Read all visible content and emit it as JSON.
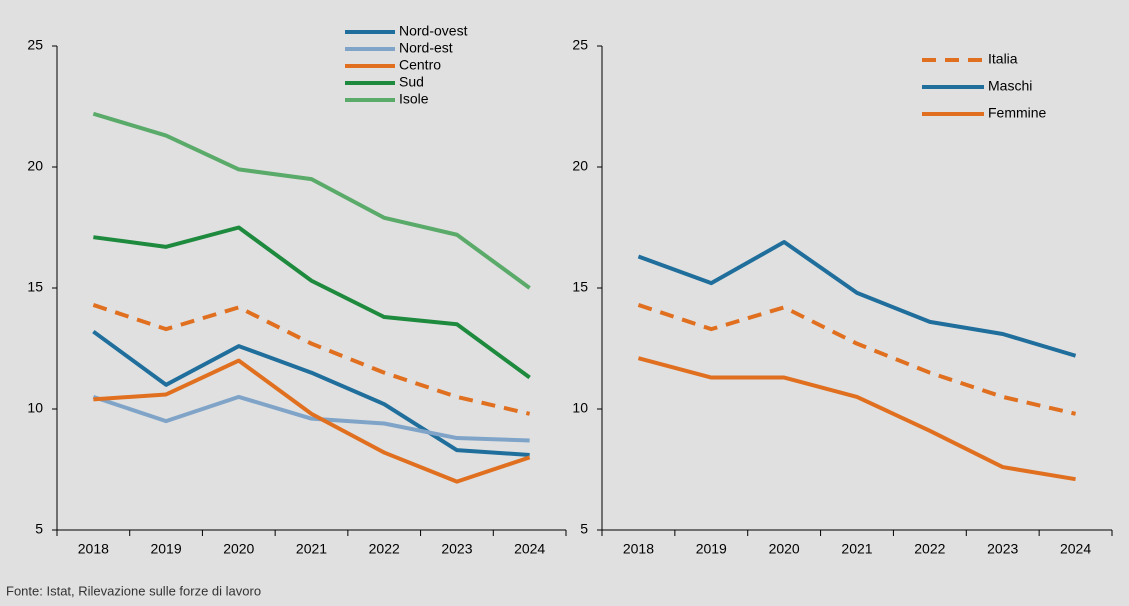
{
  "chart_data": [
    {
      "type": "line",
      "categories": [
        "2018",
        "2019",
        "2020",
        "2021",
        "2022",
        "2023",
        "2024"
      ],
      "ylim": [
        5,
        25
      ],
      "yticks": [
        5,
        10,
        15,
        20,
        25
      ],
      "legend": "top-center",
      "series": [
        {
          "name": "Nord-ovest",
          "color": "#1f6e9c",
          "values": [
            13.2,
            11.0,
            12.6,
            11.5,
            10.2,
            8.3,
            8.1
          ]
        },
        {
          "name": "Nord-est",
          "color": "#7fa4c8",
          "values": [
            10.5,
            9.5,
            10.5,
            9.6,
            9.4,
            8.8,
            8.7
          ]
        },
        {
          "name": "Centro",
          "color": "#e07020",
          "values": [
            10.4,
            10.6,
            12.0,
            9.8,
            8.2,
            7.0,
            8.0
          ]
        },
        {
          "name": "Sud",
          "color": "#1e8a3e",
          "values": [
            17.1,
            16.7,
            17.5,
            15.3,
            13.8,
            13.5,
            11.3
          ]
        },
        {
          "name": "Isole",
          "color": "#5aaa6a",
          "values": [
            22.2,
            21.3,
            19.9,
            19.5,
            17.9,
            17.2,
            15.0
          ]
        },
        {
          "color": "#e07020",
          "dashed": true,
          "values": [
            14.3,
            13.3,
            14.2,
            12.7,
            11.5,
            10.5,
            9.8
          ]
        }
      ]
    },
    {
      "type": "line",
      "categories": [
        "2018",
        "2019",
        "2020",
        "2021",
        "2022",
        "2023",
        "2024"
      ],
      "ylim": [
        5,
        25
      ],
      "yticks": [
        5,
        10,
        15,
        20,
        25
      ],
      "legend": "top-right",
      "series": [
        {
          "name": "Italia",
          "color": "#e07020",
          "dashed": true,
          "values": [
            14.3,
            13.3,
            14.2,
            12.7,
            11.5,
            10.5,
            9.8
          ]
        },
        {
          "name": "Maschi",
          "color": "#1f6e9c",
          "values": [
            16.3,
            15.2,
            16.9,
            14.8,
            13.6,
            13.1,
            12.2
          ]
        },
        {
          "name": "Femmine",
          "color": "#e07020",
          "values": [
            12.1,
            11.3,
            11.3,
            10.5,
            9.1,
            7.6,
            7.1
          ]
        }
      ]
    }
  ],
  "source": "Fonte: Istat, Rilevazione sulle forze di lavoro"
}
